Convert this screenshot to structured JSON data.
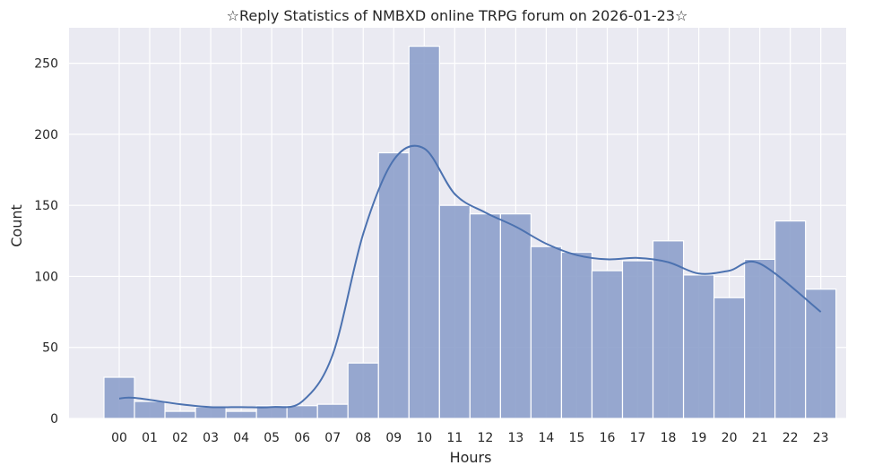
{
  "chart_data": {
    "type": "bar",
    "title": "☆Reply Statistics of NMBXD online TRPG forum on 2026-01-23☆",
    "xlabel": "Hours",
    "ylabel": "Count",
    "categories": [
      "00",
      "01",
      "02",
      "03",
      "04",
      "05",
      "06",
      "07",
      "08",
      "09",
      "10",
      "11",
      "12",
      "13",
      "14",
      "15",
      "16",
      "17",
      "18",
      "19",
      "20",
      "21",
      "22",
      "23"
    ],
    "values": [
      29,
      12,
      5,
      8,
      5,
      9,
      9,
      10,
      39,
      187,
      262,
      150,
      144,
      144,
      121,
      117,
      104,
      111,
      125,
      101,
      85,
      112,
      139,
      91
    ],
    "kde": [
      14,
      14.5,
      10,
      8,
      8,
      8,
      12,
      45,
      130,
      182,
      190,
      158,
      145,
      135,
      123,
      115,
      112,
      113,
      110,
      102,
      104,
      109,
      75
    ],
    "kde_x": [
      0,
      0.5,
      2,
      3,
      4,
      5,
      6,
      7,
      8,
      9,
      10,
      11,
      12,
      13,
      14,
      15,
      16,
      17,
      18,
      19,
      20,
      21,
      23
    ],
    "yticks": [
      0,
      50,
      100,
      150,
      200,
      250
    ],
    "ylim": [
      0,
      275
    ],
    "grid": true,
    "bar_color": "#8da0cb",
    "line_color": "#4c72b0",
    "background_color": "#eaeaf2"
  }
}
